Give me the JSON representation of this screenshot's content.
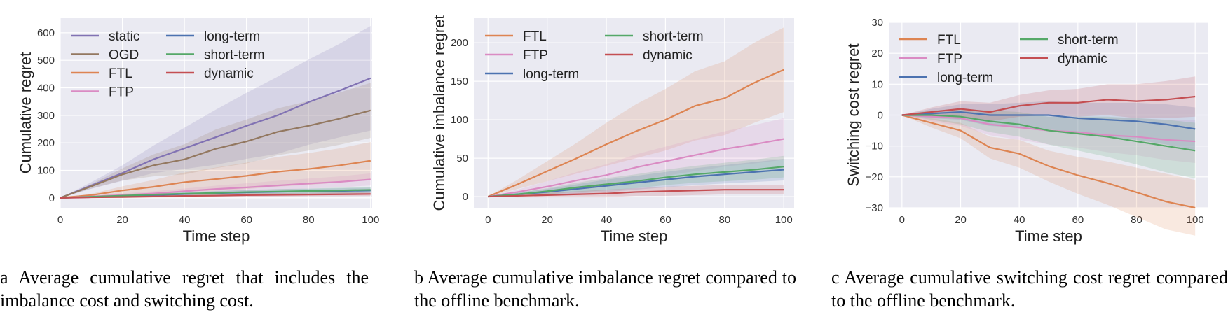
{
  "colors": {
    "static": "#8172b3",
    "OGD": "#937860",
    "FTL": "#dd8452",
    "FTP": "#da8bc3",
    "long-term": "#4c72b0",
    "short-term": "#55a868",
    "dynamic": "#c44e52",
    "plot_bg": "#eaeaf2",
    "grid": "#ffffff"
  },
  "captions": [
    "a Average cumulative regret that includes the imbalance cost and switching cost.",
    "b Average cumulative imbalance regret compared to the offline benchmark.",
    "c Average cumulative switching cost regret compared to the offline benchmark."
  ],
  "chart_data": [
    {
      "type": "line",
      "xlabel": "Time step",
      "ylabel": "Cumulative regret",
      "xlim": [
        0,
        100.5
      ],
      "ylim": [
        -36,
        653
      ],
      "xticks": [
        0,
        20,
        40,
        60,
        80,
        100
      ],
      "yticks": [
        0,
        100,
        200,
        300,
        400,
        500,
        600
      ],
      "grid": true,
      "legend": "top-left",
      "legend_columns": 2,
      "x": [
        0,
        10,
        20,
        30,
        40,
        50,
        60,
        70,
        80,
        90,
        100
      ],
      "series": [
        {
          "name": "static",
          "values": [
            0,
            45,
            90,
            140,
            180,
            220,
            262,
            300,
            348,
            390,
            435
          ],
          "band": [
            0,
            12,
            28,
            50,
            75,
            100,
            120,
            140,
            155,
            170,
            190
          ]
        },
        {
          "name": "OGD",
          "values": [
            0,
            42,
            85,
            118,
            140,
            178,
            205,
            240,
            262,
            288,
            318
          ],
          "band": [
            0,
            8,
            22,
            40,
            55,
            70,
            80,
            85,
            90,
            95,
            100
          ]
        },
        {
          "name": "FTL",
          "values": [
            0,
            10,
            27,
            40,
            57,
            68,
            80,
            95,
            105,
            118,
            135
          ],
          "band": [
            0,
            5,
            15,
            25,
            35,
            42,
            48,
            54,
            58,
            62,
            68
          ]
        },
        {
          "name": "FTP",
          "values": [
            0,
            5,
            10,
            16,
            24,
            32,
            38,
            45,
            52,
            58,
            67
          ],
          "band": [
            0,
            3,
            6,
            8,
            10,
            12,
            15,
            17,
            18,
            20,
            22
          ]
        },
        {
          "name": "long-term",
          "values": [
            0,
            3,
            6,
            10,
            14,
            17,
            20,
            22,
            24,
            25,
            27
          ],
          "band": [
            0,
            2,
            4,
            5,
            6,
            7,
            8,
            9,
            9,
            10,
            10
          ]
        },
        {
          "name": "short-term",
          "values": [
            0,
            4,
            8,
            12,
            15,
            18,
            21,
            23,
            25,
            27,
            29
          ],
          "band": [
            0,
            2,
            4,
            5,
            6,
            7,
            8,
            9,
            9,
            10,
            10
          ]
        },
        {
          "name": "dynamic",
          "values": [
            0,
            2,
            3,
            5,
            7,
            8,
            10,
            11,
            12,
            13,
            14
          ],
          "band": [
            0,
            2,
            3,
            4,
            5,
            5,
            6,
            6,
            6,
            7,
            7
          ]
        }
      ]
    },
    {
      "type": "line",
      "xlabel": "Time step",
      "ylabel": "Cumulative imbalance regret",
      "xlim": [
        -4.8,
        103.5
      ],
      "ylim": [
        -14.5,
        232
      ],
      "xticks": [
        0,
        20,
        40,
        60,
        80,
        100
      ],
      "yticks": [
        0,
        50,
        100,
        150,
        200
      ],
      "grid": true,
      "legend": "top-left",
      "legend_columns": 2,
      "x": [
        0,
        10,
        20,
        30,
        40,
        50,
        60,
        70,
        80,
        90,
        100
      ],
      "series": [
        {
          "name": "FTL",
          "values": [
            0,
            16,
            33,
            50,
            68,
            85,
            100,
            118,
            128,
            148,
            165
          ],
          "band": [
            0,
            6,
            13,
            20,
            28,
            35,
            40,
            45,
            48,
            52,
            55
          ]
        },
        {
          "name": "FTP",
          "values": [
            0,
            6,
            13,
            21,
            28,
            38,
            46,
            54,
            62,
            68,
            75
          ],
          "band": [
            0,
            3,
            7,
            11,
            14,
            17,
            19,
            21,
            23,
            25,
            27
          ]
        },
        {
          "name": "long-term",
          "values": [
            0,
            3,
            6,
            10,
            14,
            18,
            22,
            26,
            29,
            32,
            35
          ],
          "band": [
            0,
            2,
            4,
            6,
            8,
            9,
            10,
            11,
            12,
            13,
            14
          ]
        },
        {
          "name": "short-term",
          "values": [
            0,
            3,
            7,
            12,
            16,
            20,
            25,
            29,
            32,
            35,
            39
          ],
          "band": [
            0,
            2,
            4,
            6,
            8,
            9,
            10,
            11,
            12,
            13,
            14
          ]
        },
        {
          "name": "dynamic",
          "values": [
            0,
            1,
            2,
            3,
            4,
            6,
            7,
            8,
            9,
            9,
            9
          ],
          "band": [
            0,
            2,
            3,
            4,
            5,
            5,
            6,
            6,
            6,
            6,
            6
          ]
        }
      ]
    },
    {
      "type": "line",
      "xlabel": "Time step",
      "ylabel": "Switching cost regret",
      "xlim": [
        -4.5,
        104.5
      ],
      "ylim": [
        -30,
        30
      ],
      "xticks": [
        0,
        20,
        40,
        60,
        80,
        100
      ],
      "yticks": [
        -30,
        -20,
        -10,
        0,
        10,
        20,
        30
      ],
      "grid": true,
      "legend": "top-left",
      "legend_columns": 2,
      "x": [
        0,
        10,
        20,
        30,
        40,
        50,
        60,
        70,
        80,
        90,
        100
      ],
      "series": [
        {
          "name": "FTL",
          "values": [
            0,
            -2.5,
            -5,
            -10.5,
            -12.5,
            -16.5,
            -19.5,
            -22,
            -25,
            -28,
            -30
          ],
          "band": [
            0,
            1.5,
            2.5,
            3.5,
            4.5,
            5,
            6,
            7,
            8,
            9,
            9
          ]
        },
        {
          "name": "FTP",
          "values": [
            0,
            -0.5,
            -1,
            -3,
            -4,
            -5,
            -5.5,
            -6.5,
            -7,
            -8,
            -8.5
          ],
          "band": [
            0,
            1.5,
            2.5,
            3.5,
            4,
            4.5,
            5,
            5.5,
            6,
            6.5,
            7
          ]
        },
        {
          "name": "long-term",
          "values": [
            0,
            0.5,
            1,
            0,
            0,
            0,
            -1,
            -1.5,
            -2,
            -3,
            -4.5
          ],
          "band": [
            0,
            1.5,
            2.5,
            3.5,
            4,
            4.5,
            5,
            5.5,
            6,
            6.5,
            7
          ]
        },
        {
          "name": "short-term",
          "values": [
            0,
            0,
            -0.5,
            -2,
            -3,
            -5,
            -6,
            -7,
            -8.5,
            -10,
            -11.5
          ],
          "band": [
            0,
            1.5,
            2.5,
            3.5,
            4,
            4.5,
            5.5,
            6.5,
            7.5,
            8.5,
            9
          ]
        },
        {
          "name": "dynamic",
          "values": [
            0,
            1,
            2,
            1,
            3,
            4,
            4,
            5,
            4.5,
            5,
            6
          ],
          "band": [
            0,
            1.5,
            2.5,
            3,
            3.5,
            4,
            4.5,
            5,
            5.5,
            6,
            6.5
          ]
        }
      ]
    }
  ]
}
